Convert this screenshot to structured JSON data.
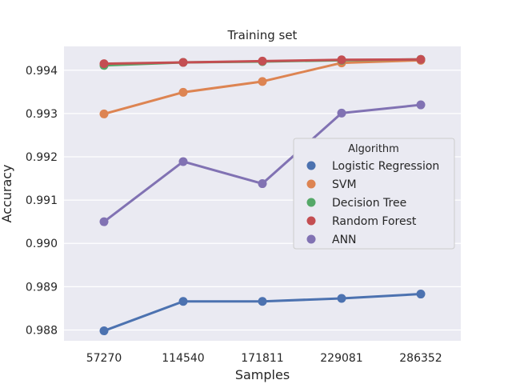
{
  "chart_data": {
    "type": "line",
    "title": "Training set",
    "xlabel": "Samples",
    "ylabel": "Accuracy",
    "categories": [
      "57270",
      "114540",
      "171811",
      "229081",
      "286352"
    ],
    "ylim": [
      0.98775,
      0.99455
    ],
    "yticks": [
      "0.988",
      "0.989",
      "0.990",
      "0.991",
      "0.992",
      "0.993",
      "0.994"
    ],
    "grid": true,
    "legend_title": "Algorithm",
    "legend_position": "right",
    "series": [
      {
        "name": "Logistic Regression",
        "color": "#4c72b0",
        "values": [
          0.98798,
          0.98866,
          0.98866,
          0.98873,
          0.98883
        ]
      },
      {
        "name": "SVM",
        "color": "#dd8452",
        "values": [
          0.99299,
          0.99349,
          0.99374,
          0.99417,
          0.99423
        ]
      },
      {
        "name": "Decision Tree",
        "color": "#55a868",
        "values": [
          0.99411,
          0.99418,
          0.9942,
          0.99423,
          0.99425
        ]
      },
      {
        "name": "Random Forest",
        "color": "#c44e52",
        "values": [
          0.99415,
          0.99418,
          0.99421,
          0.99424,
          0.99425
        ]
      },
      {
        "name": "ANN",
        "color": "#8172b3",
        "values": [
          0.9905,
          0.99189,
          0.99138,
          0.99301,
          0.9932
        ]
      }
    ]
  }
}
